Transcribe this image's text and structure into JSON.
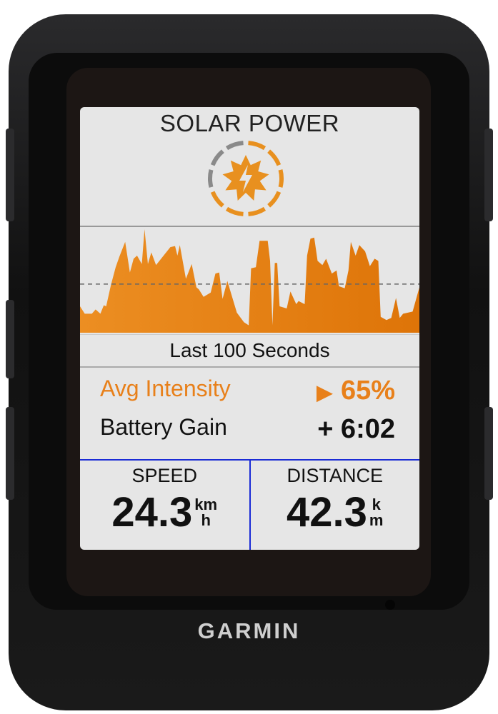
{
  "device": {
    "brand": "GARMIN"
  },
  "screen": {
    "title": "SOLAR POWER",
    "sun_icon": "solar-intensity-icon",
    "caption": "Last 100 Seconds",
    "avg_intensity": {
      "label": "Avg Intensity",
      "value": "65%",
      "icon": "play-triangle-icon",
      "color": "#e8801a"
    },
    "battery_gain": {
      "label": "Battery Gain",
      "value": "+ 6:02"
    },
    "fields": [
      {
        "label": "SPEED",
        "value": "24.3",
        "unit_top": "km",
        "unit_bottom": "h"
      },
      {
        "label": "DISTANCE",
        "value": "42.3",
        "unit_top": "k",
        "unit_bottom": "m"
      }
    ],
    "field_border_color": "#1a2bd6"
  },
  "chart_data": {
    "type": "area",
    "xlim": [
      0,
      100
    ],
    "ylim": [
      0,
      100
    ],
    "color": "#e8801a",
    "reference_line": 46,
    "points": [
      [
        0,
        25
      ],
      [
        1.4,
        18
      ],
      [
        3.5,
        18
      ],
      [
        4.6,
        22
      ],
      [
        6,
        18
      ],
      [
        7,
        26
      ],
      [
        7.7,
        25
      ],
      [
        9.1,
        45
      ],
      [
        10.5,
        62
      ],
      [
        11.6,
        72
      ],
      [
        13.3,
        86
      ],
      [
        14.7,
        57
      ],
      [
        15.8,
        70
      ],
      [
        16.8,
        73
      ],
      [
        18.2,
        65
      ],
      [
        19,
        98
      ],
      [
        20,
        65
      ],
      [
        21,
        76
      ],
      [
        22.4,
        64
      ],
      [
        26.6,
        81
      ],
      [
        28,
        82
      ],
      [
        28.7,
        73
      ],
      [
        29.4,
        83
      ],
      [
        31.2,
        51
      ],
      [
        32.9,
        65
      ],
      [
        34.3,
        43
      ],
      [
        35,
        41
      ],
      [
        36.4,
        34
      ],
      [
        38.5,
        38
      ],
      [
        39.9,
        56
      ],
      [
        41,
        57
      ],
      [
        42,
        32
      ],
      [
        43.4,
        49
      ],
      [
        46.2,
        19
      ],
      [
        48.3,
        10
      ],
      [
        49.7,
        7
      ],
      [
        50.4,
        61
      ],
      [
        51.8,
        62
      ],
      [
        52.9,
        87
      ],
      [
        55.3,
        87
      ],
      [
        56,
        68
      ],
      [
        56.7,
        7
      ],
      [
        57.4,
        66
      ],
      [
        58.1,
        66
      ],
      [
        58.8,
        25
      ],
      [
        60.9,
        23
      ],
      [
        62,
        39
      ],
      [
        63.7,
        27
      ],
      [
        64.4,
        30
      ],
      [
        66.2,
        27
      ],
      [
        66.9,
        73
      ],
      [
        67.9,
        89
      ],
      [
        69,
        90
      ],
      [
        70,
        68
      ],
      [
        71.4,
        64
      ],
      [
        72.5,
        70
      ],
      [
        74.2,
        56
      ],
      [
        75.6,
        59
      ],
      [
        76.3,
        44
      ],
      [
        78,
        42
      ],
      [
        79.1,
        59
      ],
      [
        79.8,
        86
      ],
      [
        81.2,
        73
      ],
      [
        82.3,
        83
      ],
      [
        84,
        77
      ],
      [
        85.4,
        63
      ],
      [
        86.8,
        70
      ],
      [
        87.9,
        68
      ],
      [
        88.6,
        15
      ],
      [
        90.3,
        12
      ],
      [
        91.7,
        14
      ],
      [
        93.1,
        33
      ],
      [
        94.2,
        14
      ],
      [
        95.2,
        18
      ],
      [
        98,
        20
      ],
      [
        98.7,
        28
      ],
      [
        100,
        43
      ]
    ]
  }
}
